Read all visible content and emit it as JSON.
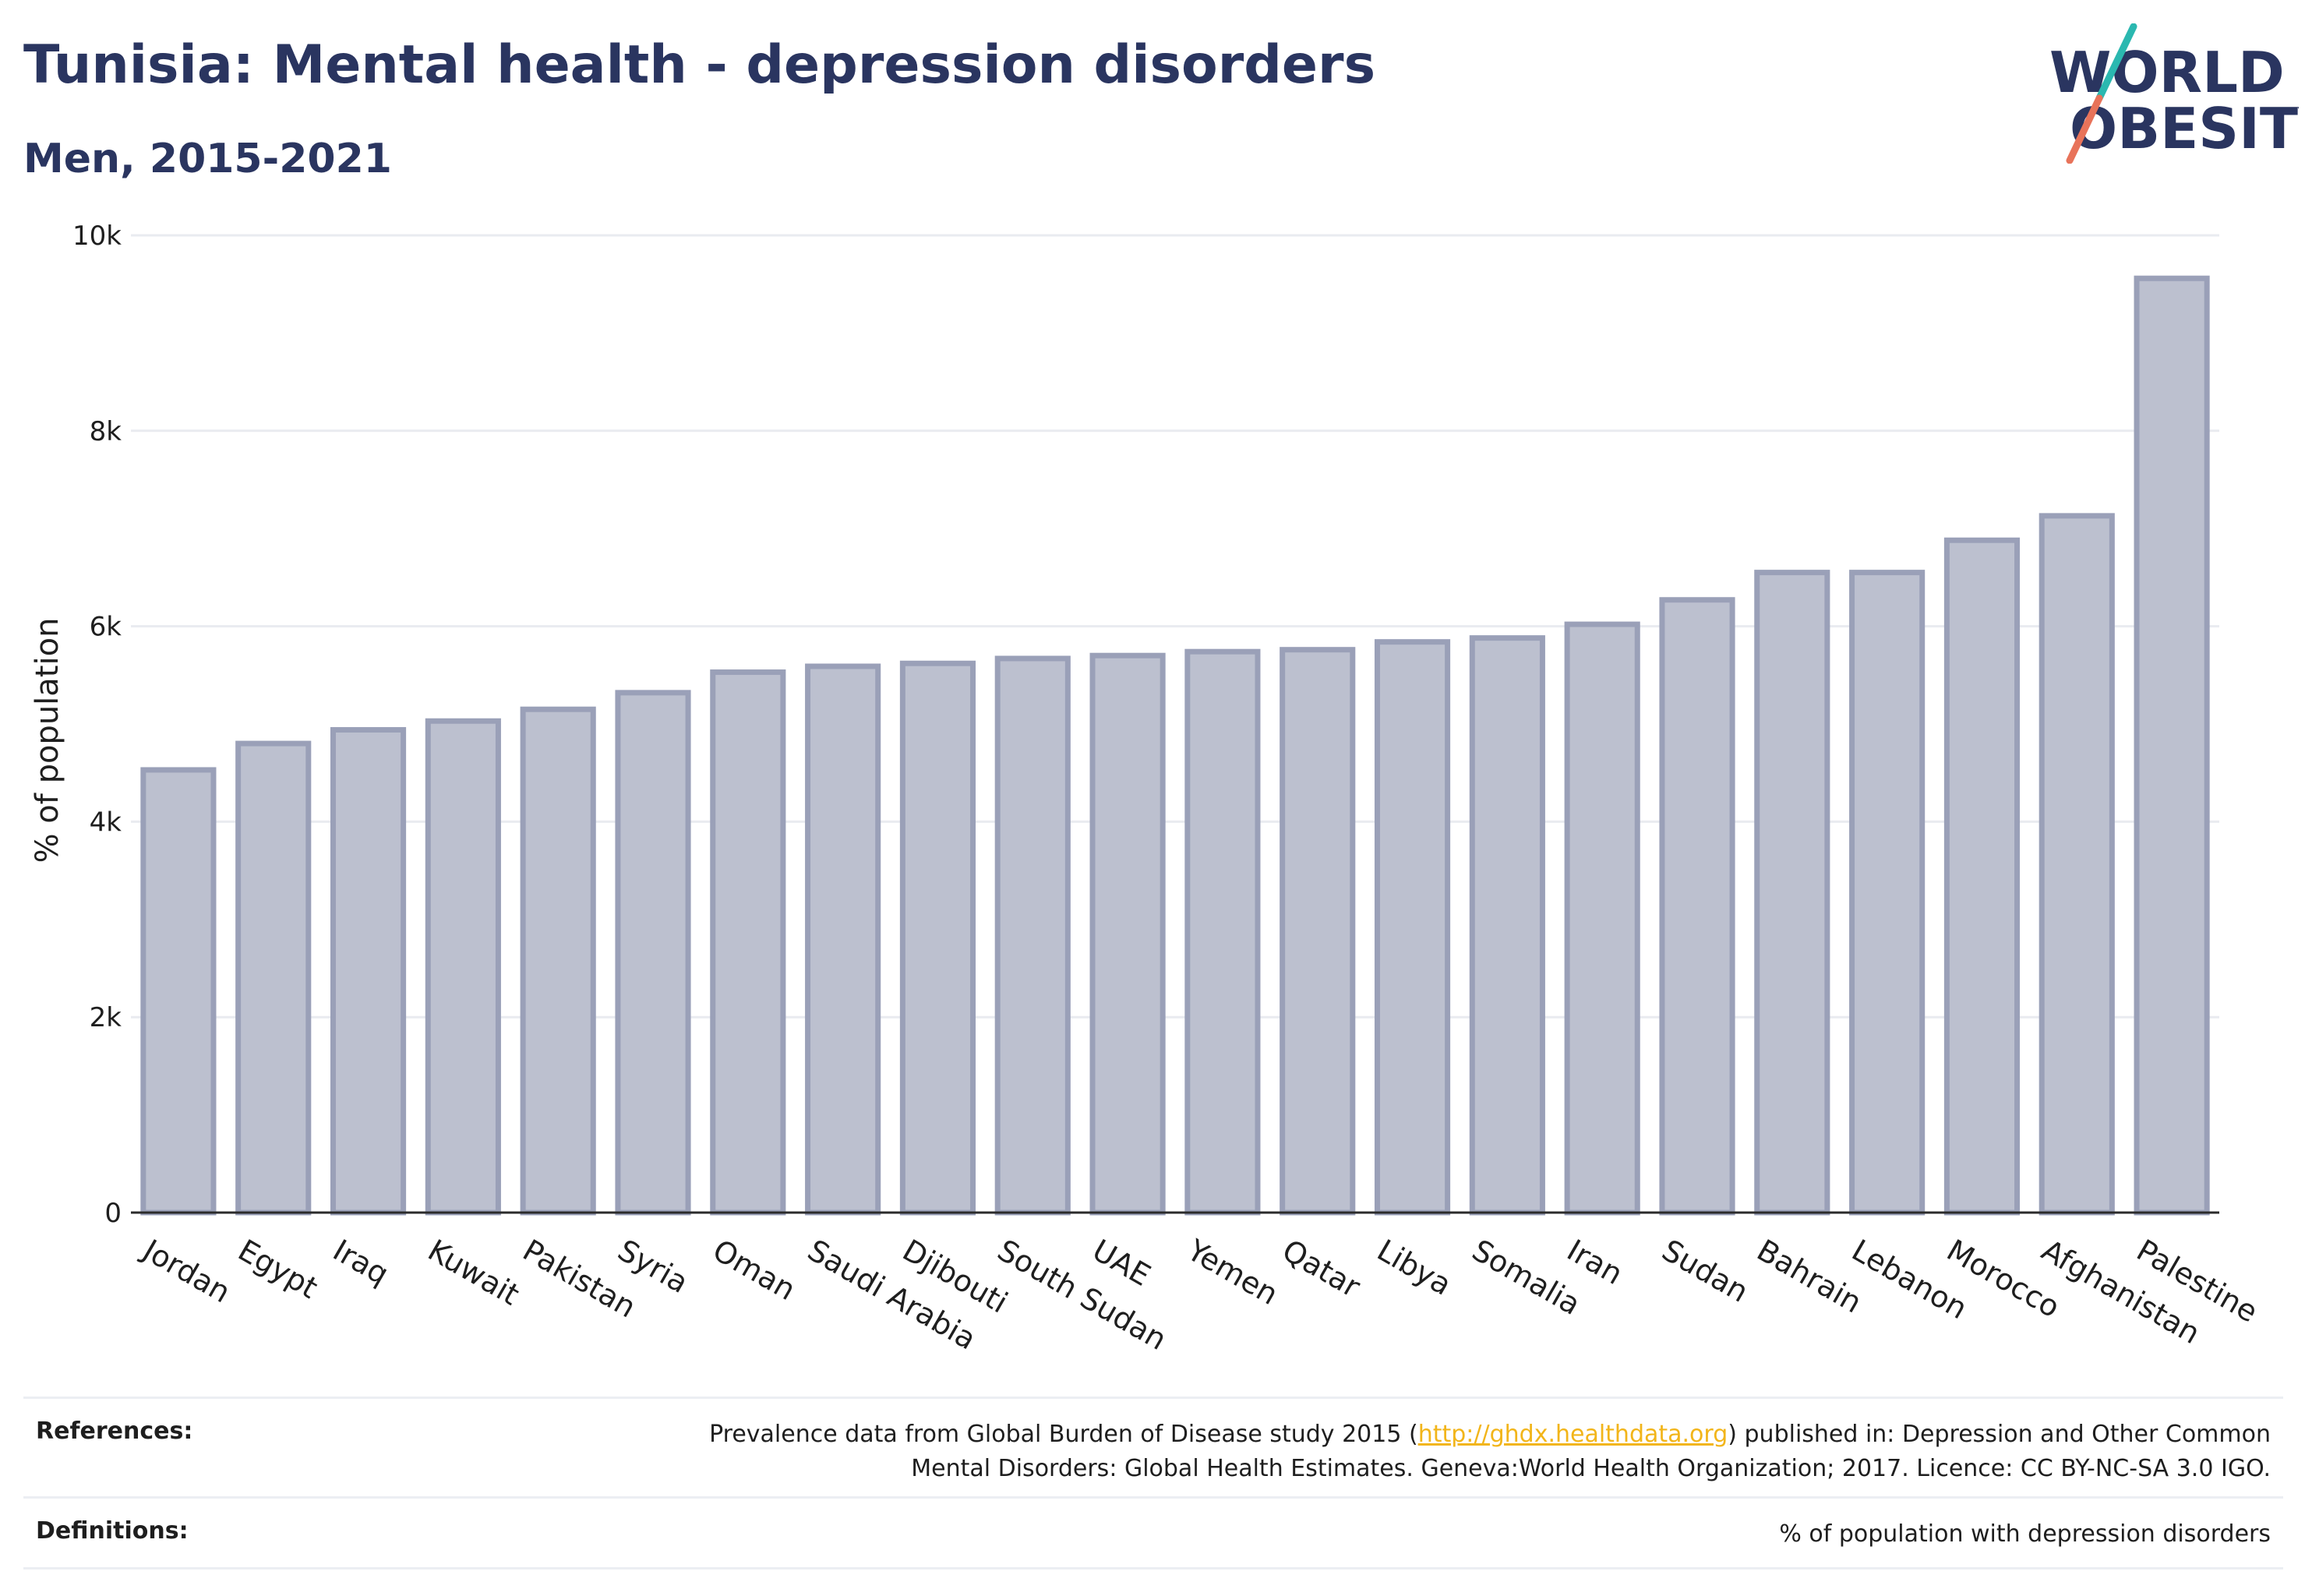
{
  "header": {
    "title": "Tunisia: Mental health - depression disorders",
    "subtitle": "Men, 2015-2021"
  },
  "logo": {
    "line1": "WORLD",
    "line2": "OBESITY"
  },
  "chart_data": {
    "type": "bar",
    "ylabel": "% of population",
    "xlabel": "",
    "ylim": [
      0,
      10000
    ],
    "yticks": [
      0,
      2000,
      4000,
      6000,
      8000,
      10000
    ],
    "ytick_labels": [
      "0",
      "2k",
      "4k",
      "6k",
      "8k",
      "10k"
    ],
    "categories": [
      "Jordan",
      "Egypt",
      "Iraq",
      "Kuwait",
      "Pakistan",
      "Syria",
      "Oman",
      "Saudi Arabia",
      "Djibouti",
      "South Sudan",
      "UAE",
      "Yemen",
      "Qatar",
      "Libya",
      "Somalia",
      "Iran",
      "Sudan",
      "Bahrain",
      "Lebanon",
      "Morocco",
      "Afghanistan",
      "Palestine"
    ],
    "values": [
      4530,
      4800,
      4940,
      5030,
      5150,
      5320,
      5530,
      5590,
      5620,
      5670,
      5700,
      5740,
      5760,
      5840,
      5880,
      6020,
      6270,
      6550,
      6550,
      6880,
      7130,
      9560
    ],
    "colors": {
      "bar_fill": "#bcc0cf",
      "bar_stroke": "#9aa0b8",
      "grid": "#e9ebf0",
      "axis": "#2b2b2b"
    }
  },
  "footer": {
    "references_label": "References:",
    "references_prefix": "Prevalence data from Global Burden of Disease study 2015 (",
    "references_link": "http://ghdx.healthdata.org",
    "references_suffix": ") published in: Depression and Other Common",
    "references_line2": "Mental Disorders: Global Health Estimates. Geneva:World Health Organization; 2017. Licence: CC BY-NC-SA 3.0 IGO.",
    "definitions_label": "Definitions:",
    "definitions_text": "% of population with depression disorders"
  }
}
